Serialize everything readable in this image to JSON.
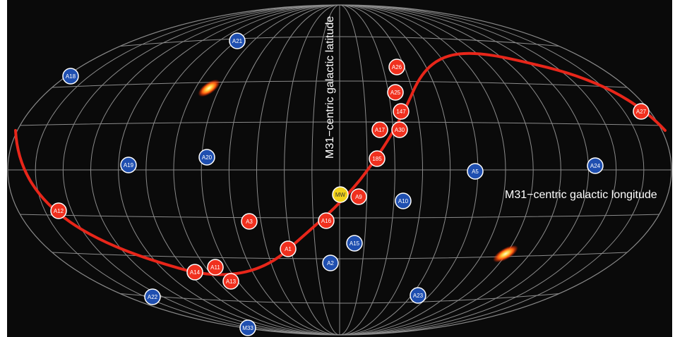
{
  "axes": {
    "latitude_label": "M31−centric galactic latitude",
    "longitude_label": "M31−centric galactic longitude"
  },
  "colors": {
    "background": "#0a0a0a",
    "grid": "#8a8a8a",
    "curve": "#e8261a",
    "red_marker": "#f0301e",
    "blue_marker": "#1f4fb0",
    "yellow_marker": "#f2d21a",
    "marker_stroke": "#ffffff"
  },
  "markers": [
    {
      "label": "A21",
      "color": "blue"
    },
    {
      "label": "A18",
      "color": "blue"
    },
    {
      "label": "A26",
      "color": "red"
    },
    {
      "label": "A25",
      "color": "red"
    },
    {
      "label": "147",
      "color": "red"
    },
    {
      "label": "A17",
      "color": "red"
    },
    {
      "label": "A30",
      "color": "red"
    },
    {
      "label": "A27",
      "color": "red"
    },
    {
      "label": "185",
      "color": "red"
    },
    {
      "label": "A19",
      "color": "blue"
    },
    {
      "label": "A20",
      "color": "blue"
    },
    {
      "label": "A5",
      "color": "blue"
    },
    {
      "label": "A24",
      "color": "blue"
    },
    {
      "label": "MW",
      "color": "yellow"
    },
    {
      "label": "A9",
      "color": "red"
    },
    {
      "label": "A10",
      "color": "blue"
    },
    {
      "label": "A12",
      "color": "red"
    },
    {
      "label": "A3",
      "color": "red"
    },
    {
      "label": "A16",
      "color": "red"
    },
    {
      "label": "A1",
      "color": "red"
    },
    {
      "label": "A15",
      "color": "blue"
    },
    {
      "label": "A2",
      "color": "blue"
    },
    {
      "label": "A14",
      "color": "red"
    },
    {
      "label": "A11",
      "color": "red"
    },
    {
      "label": "A13",
      "color": "red"
    },
    {
      "label": "A22",
      "color": "blue"
    },
    {
      "label": "A23",
      "color": "blue"
    },
    {
      "label": "M33",
      "color": "blue"
    }
  ],
  "blobs": [
    {
      "name": "blob-upper-left"
    },
    {
      "name": "blob-lower-right"
    }
  ]
}
